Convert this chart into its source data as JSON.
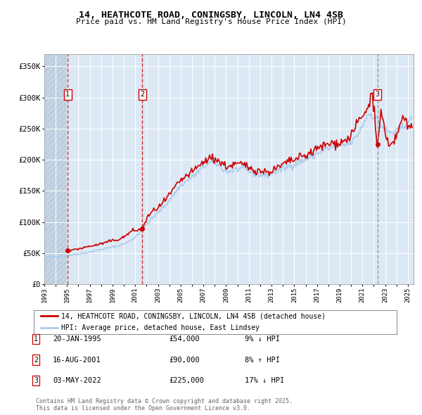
{
  "title": "14, HEATHCOTE ROAD, CONINGSBY, LINCOLN, LN4 4SB",
  "subtitle": "Price paid vs. HM Land Registry's House Price Index (HPI)",
  "bg_color": "#ffffff",
  "plot_bg_color": "#dce9f5",
  "grid_color": "#ffffff",
  "sale_color": "#cc0000",
  "hpi_color": "#aaccee",
  "legend_sale_label": "14, HEATHCOTE ROAD, CONINGSBY, LINCOLN, LN4 4SB (detached house)",
  "legend_hpi_label": "HPI: Average price, detached house, East Lindsey",
  "transactions": [
    {
      "num": 1,
      "date_label": "20-JAN-1995",
      "price": 54000,
      "pct": "9% ↓ HPI",
      "year": 1995.05
    },
    {
      "num": 2,
      "date_label": "16-AUG-2001",
      "price": 90000,
      "pct": "8% ↑ HPI",
      "year": 2001.62
    },
    {
      "num": 3,
      "date_label": "03-MAY-2022",
      "price": 225000,
      "pct": "17% ↓ HPI",
      "year": 2022.33
    }
  ],
  "xmin": 1993,
  "xmax": 2025.5,
  "ymin": 0,
  "ymax": 370000,
  "yticks": [
    0,
    50000,
    100000,
    150000,
    200000,
    250000,
    300000,
    350000
  ],
  "ytick_labels": [
    "£0",
    "£50K",
    "£100K",
    "£150K",
    "£200K",
    "£250K",
    "£300K",
    "£350K"
  ],
  "copyright_text": "Contains HM Land Registry data © Crown copyright and database right 2025.\nThis data is licensed under the Open Government Licence v3.0."
}
